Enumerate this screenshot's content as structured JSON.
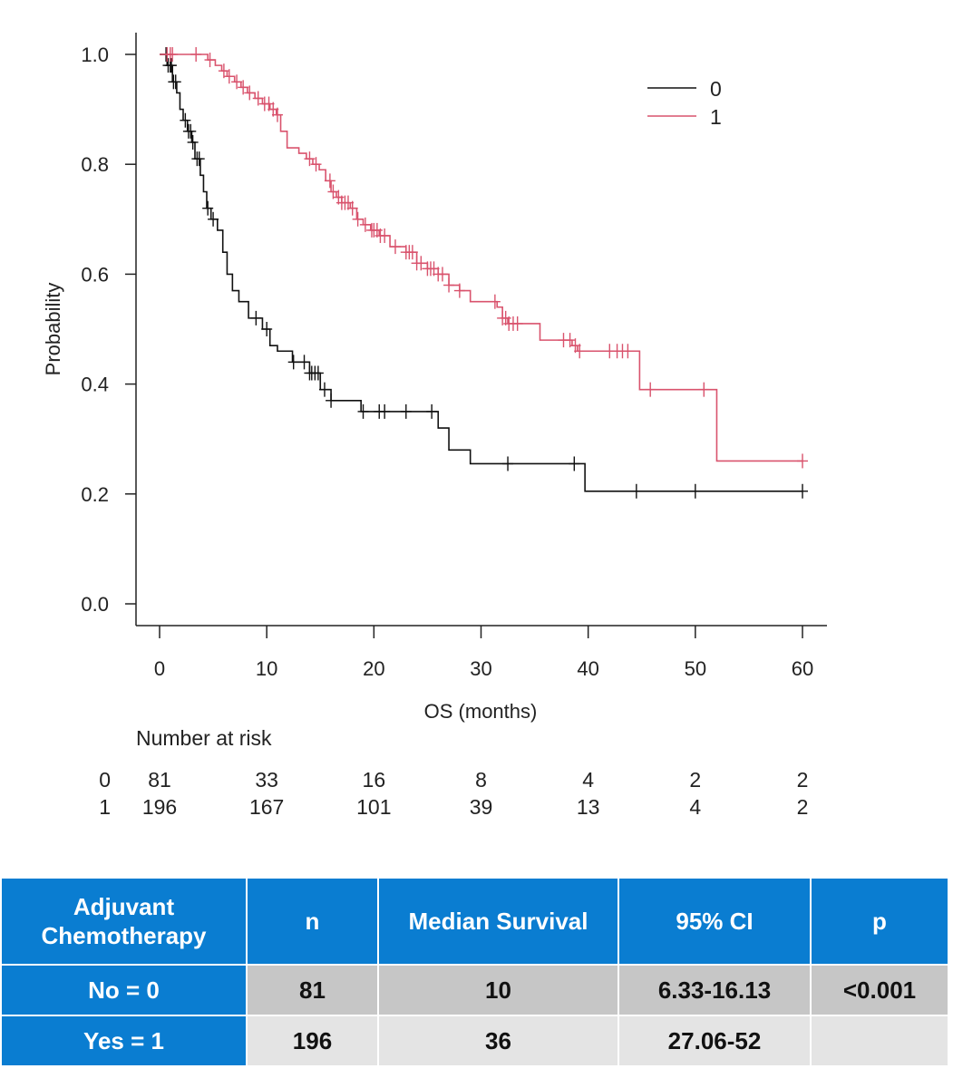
{
  "chart_data": {
    "type": "line",
    "title": "",
    "xlabel": "OS (months)",
    "ylabel": "Probability",
    "xlim": [
      0,
      60
    ],
    "ylim": [
      0,
      1
    ],
    "x_ticks": [
      0,
      10,
      20,
      30,
      40,
      50,
      60
    ],
    "y_ticks": [
      "0.0",
      "0.2",
      "0.4",
      "0.6",
      "0.8",
      "1.0"
    ],
    "legend": {
      "position": "top-right",
      "entries": [
        "0",
        "1"
      ]
    },
    "series": [
      {
        "name": "0",
        "color": "#111111",
        "steps": [
          [
            0,
            1.0
          ],
          [
            0.7,
            0.98
          ],
          [
            1.2,
            0.95
          ],
          [
            1.6,
            0.93
          ],
          [
            1.9,
            0.9
          ],
          [
            2.2,
            0.88
          ],
          [
            2.6,
            0.86
          ],
          [
            3.0,
            0.84
          ],
          [
            3.3,
            0.81
          ],
          [
            3.8,
            0.78
          ],
          [
            4.1,
            0.75
          ],
          [
            4.4,
            0.72
          ],
          [
            4.8,
            0.7
          ],
          [
            5.4,
            0.68
          ],
          [
            5.9,
            0.64
          ],
          [
            6.3,
            0.6
          ],
          [
            6.8,
            0.57
          ],
          [
            7.4,
            0.55
          ],
          [
            8.3,
            0.52
          ],
          [
            9.6,
            0.5
          ],
          [
            10.3,
            0.47
          ],
          [
            11.0,
            0.46
          ],
          [
            12.4,
            0.44
          ],
          [
            14.0,
            0.42
          ],
          [
            15.0,
            0.39
          ],
          [
            16.0,
            0.37
          ],
          [
            18.8,
            0.35
          ],
          [
            26.0,
            0.32
          ],
          [
            27.0,
            0.28
          ],
          [
            29.0,
            0.255
          ],
          [
            39.7,
            0.205
          ],
          [
            60,
            0.205
          ]
        ],
        "censor_times": [
          0.6,
          0.8,
          1.0,
          1.1,
          1.3,
          1.5,
          2.4,
          2.7,
          2.9,
          3.1,
          3.5,
          3.7,
          4.5,
          5.0,
          9.0,
          10.0,
          12.5,
          13.5,
          14.0,
          14.2,
          14.5,
          14.8,
          15.4,
          16.0,
          19.0,
          20.5,
          21.0,
          23.0,
          25.4,
          32.5,
          38.7,
          44.5,
          50.0,
          60.0
        ]
      },
      {
        "name": "1",
        "color": "#d9536d",
        "steps": [
          [
            0,
            1.0
          ],
          [
            4.5,
            0.99
          ],
          [
            5.2,
            0.98
          ],
          [
            5.8,
            0.97
          ],
          [
            6.3,
            0.96
          ],
          [
            7.0,
            0.95
          ],
          [
            7.6,
            0.94
          ],
          [
            8.2,
            0.93
          ],
          [
            8.9,
            0.92
          ],
          [
            9.6,
            0.91
          ],
          [
            10.3,
            0.9
          ],
          [
            10.9,
            0.89
          ],
          [
            11.3,
            0.86
          ],
          [
            11.9,
            0.83
          ],
          [
            13.0,
            0.82
          ],
          [
            13.7,
            0.81
          ],
          [
            14.3,
            0.8
          ],
          [
            14.9,
            0.79
          ],
          [
            15.5,
            0.77
          ],
          [
            16.0,
            0.75
          ],
          [
            16.5,
            0.74
          ],
          [
            17.0,
            0.73
          ],
          [
            17.8,
            0.72
          ],
          [
            18.4,
            0.7
          ],
          [
            19.0,
            0.69
          ],
          [
            19.7,
            0.68
          ],
          [
            20.5,
            0.67
          ],
          [
            21.5,
            0.65
          ],
          [
            23.0,
            0.64
          ],
          [
            24.0,
            0.62
          ],
          [
            25.0,
            0.61
          ],
          [
            26.0,
            0.6
          ],
          [
            27.0,
            0.58
          ],
          [
            28.0,
            0.57
          ],
          [
            29.0,
            0.55
          ],
          [
            31.5,
            0.54
          ],
          [
            32.0,
            0.52
          ],
          [
            32.5,
            0.51
          ],
          [
            35.5,
            0.48
          ],
          [
            38.5,
            0.47
          ],
          [
            39.0,
            0.46
          ],
          [
            44.8,
            0.39
          ],
          [
            52.0,
            0.26
          ],
          [
            60,
            0.26
          ]
        ],
        "censor_times": [
          0.7,
          1.0,
          1.2,
          3.4,
          4.7,
          6.0,
          6.5,
          7.2,
          7.8,
          8.4,
          9.2,
          9.8,
          10.2,
          10.6,
          11.0,
          14.0,
          14.6,
          15.9,
          16.2,
          16.7,
          17.0,
          17.3,
          17.6,
          18.0,
          18.5,
          19.2,
          19.8,
          20.0,
          20.3,
          20.6,
          21.0,
          22.0,
          23.0,
          23.3,
          23.6,
          24.0,
          24.4,
          25.0,
          25.3,
          25.6,
          26.0,
          26.4,
          27.0,
          28.0,
          31.3,
          32.0,
          32.3,
          32.6,
          33.0,
          33.4,
          37.7,
          38.3,
          38.8,
          39.2,
          42.0,
          42.7,
          43.2,
          43.7,
          45.8,
          50.8,
          60.0
        ]
      }
    ],
    "number_at_risk": {
      "title": "Number at risk",
      "groups": [
        {
          "label": "0",
          "counts": [
            "81",
            "33",
            "16",
            "8",
            "4",
            "2",
            "2"
          ]
        },
        {
          "label": "1",
          "counts": [
            "196",
            "167",
            "101",
            "39",
            "13",
            "4",
            "2"
          ]
        }
      ]
    }
  },
  "table": {
    "headers": [
      "Adjuvant Chemotherapy",
      "n",
      "Median Survival",
      "95% CI",
      "p"
    ],
    "rows": [
      {
        "label": "No = 0",
        "cells": [
          "81",
          "10",
          "6.33-16.13",
          "<0.001"
        ]
      },
      {
        "label": "Yes = 1",
        "cells": [
          "196",
          "36",
          "27.06-52",
          ""
        ]
      }
    ]
  }
}
